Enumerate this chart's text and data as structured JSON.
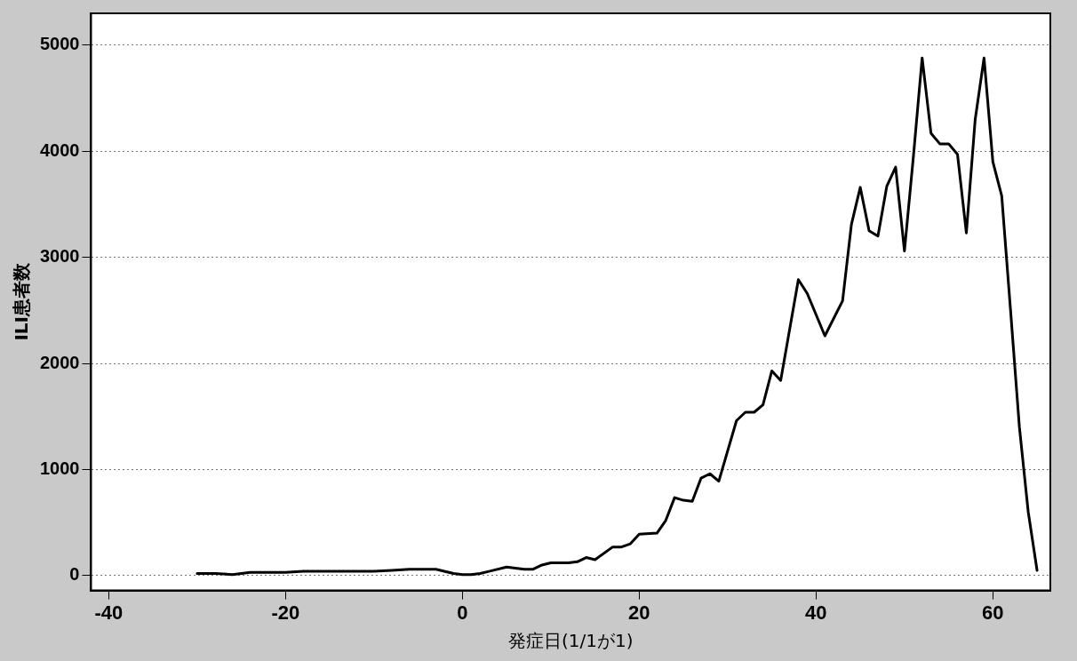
{
  "chart_data": {
    "type": "line",
    "xlabel": "発症日(1/1が1)",
    "ylabel": "ILI患者数",
    "x": [
      -30,
      -28,
      -26,
      -24,
      -22,
      -20,
      -18,
      -16,
      -14,
      -13,
      -12,
      -10,
      -8,
      -6,
      -4,
      -3,
      -1,
      0,
      1,
      2,
      3,
      5,
      7,
      8,
      9,
      10,
      12,
      13,
      14,
      15,
      17,
      18,
      19,
      20,
      22,
      23,
      24,
      25,
      26,
      27,
      28,
      29,
      31,
      32,
      33,
      34,
      35,
      36,
      38,
      39,
      41,
      43,
      44,
      45,
      46,
      47,
      48,
      49,
      50,
      51,
      52,
      53,
      54,
      55,
      56,
      57,
      58,
      59,
      60,
      61,
      62,
      63,
      64,
      65
    ],
    "series": [
      {
        "color": "#000000",
        "values": [
          20,
          20,
          10,
          30,
          30,
          30,
          40,
          40,
          40,
          40,
          40,
          40,
          50,
          60,
          60,
          60,
          20,
          10,
          10,
          20,
          40,
          80,
          60,
          60,
          100,
          120,
          120,
          130,
          170,
          150,
          270,
          270,
          300,
          390,
          400,
          520,
          735,
          710,
          700,
          920,
          960,
          890,
          1460,
          1540,
          1540,
          1610,
          1930,
          1840,
          2790,
          2660,
          2260,
          2590,
          3310,
          3660,
          3250,
          3200,
          3670,
          3850,
          3060,
          3940,
          4880,
          4170,
          4070,
          4070,
          3970,
          3230,
          4300,
          4880,
          3900,
          3580,
          2500,
          1400,
          600,
          50
        ]
      }
    ],
    "xlim": [
      -42,
      66.5
    ],
    "xticks": [
      -40,
      -20,
      0,
      20,
      40,
      60
    ],
    "ylim": [
      -140,
      5300
    ],
    "yticks": [
      0,
      1000,
      2000,
      3000,
      4000,
      5000
    ],
    "grid": "y",
    "marker": "none",
    "line_style": "solid"
  }
}
